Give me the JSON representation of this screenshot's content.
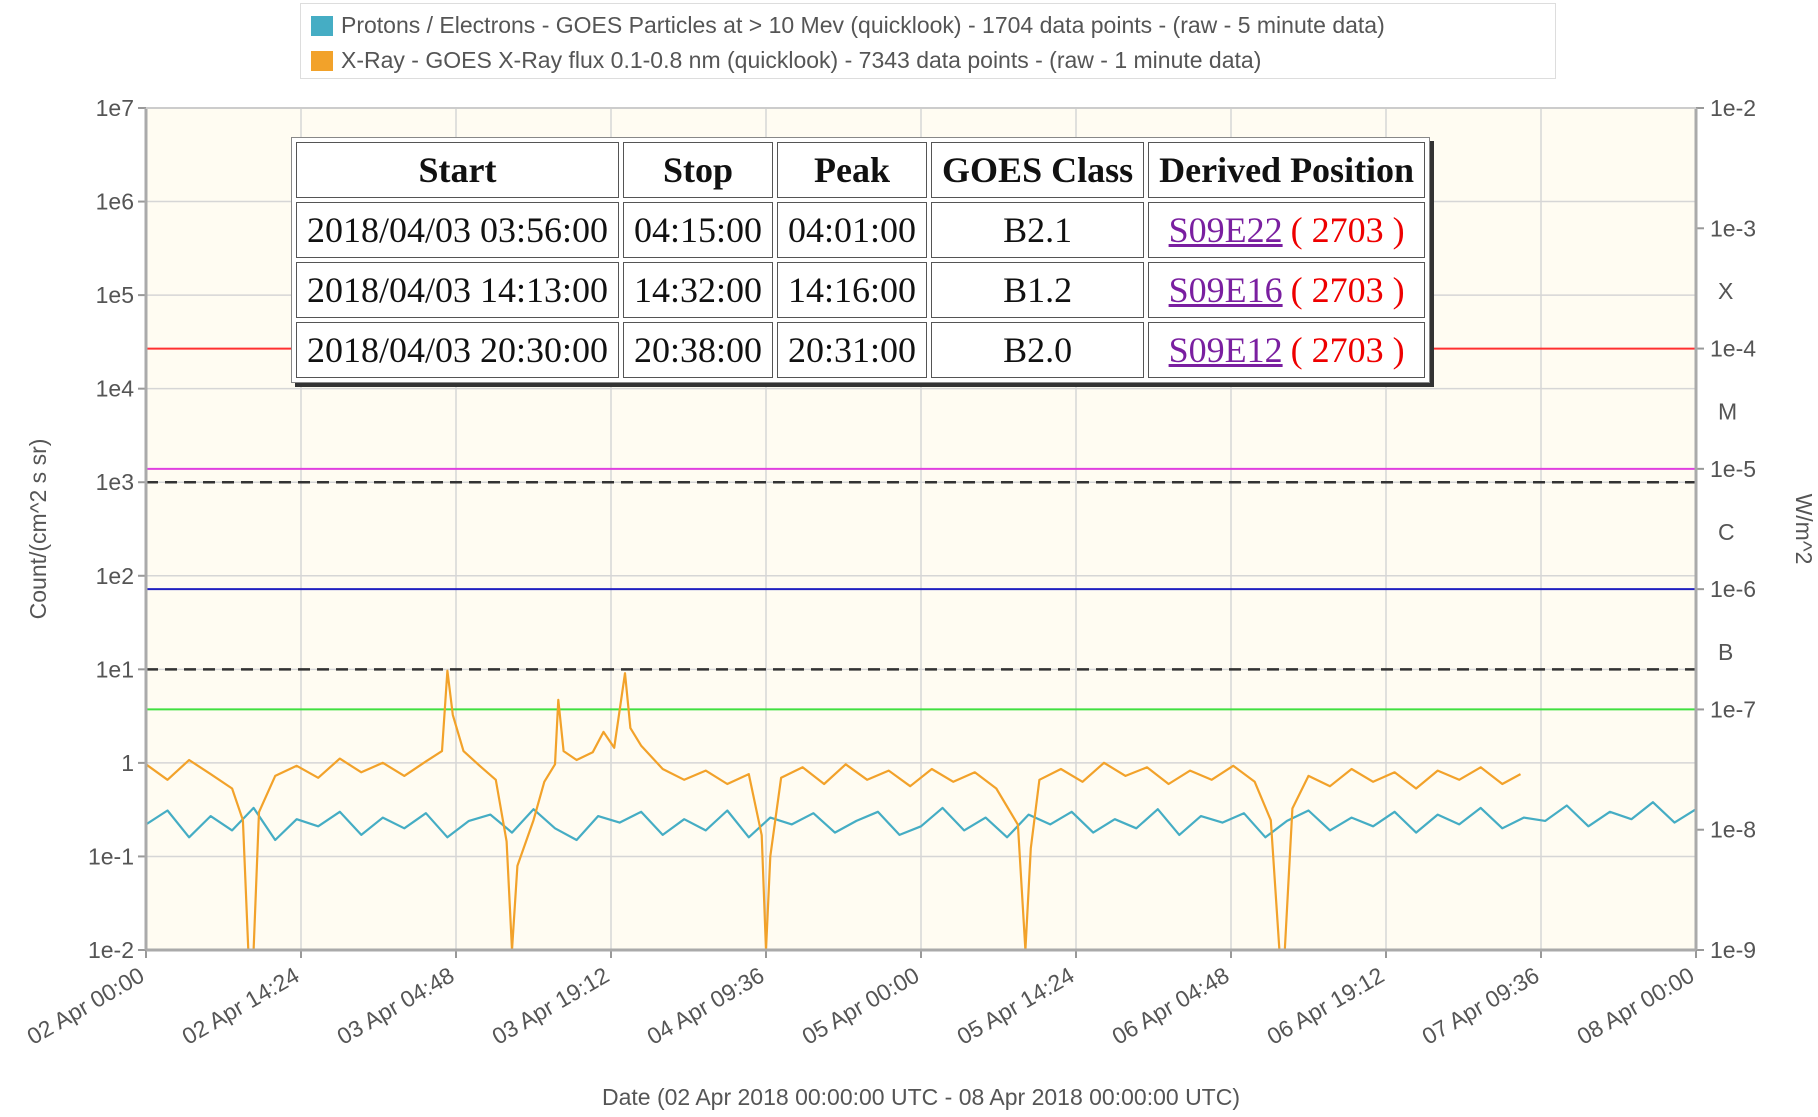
{
  "chart_data": {
    "type": "line",
    "xlabel": "Date (02 Apr 2018 00:00:00 UTC - 08 Apr 2018 00:00:00 UTC)",
    "ylabel": "Count/(cm^2 s sr)",
    "y2label": "W/m^2",
    "ylog": true,
    "y2log": true,
    "grid": true,
    "xlim": [
      "2018-04-02T00:00",
      "2018-04-08T00:00"
    ],
    "xticks": [
      {
        "value": "2018-04-02T00:00",
        "label": "02 Apr 00:00"
      },
      {
        "value": "2018-04-02T14:24",
        "label": "02 Apr 14:24"
      },
      {
        "value": "2018-04-03T04:48",
        "label": "03 Apr 04:48"
      },
      {
        "value": "2018-04-03T19:12",
        "label": "03 Apr 19:12"
      },
      {
        "value": "2018-04-04T09:36",
        "label": "04 Apr 09:36"
      },
      {
        "value": "2018-04-05T00:00",
        "label": "05 Apr 00:00"
      },
      {
        "value": "2018-04-05T14:24",
        "label": "05 Apr 14:24"
      },
      {
        "value": "2018-04-06T04:48",
        "label": "06 Apr 04:48"
      },
      {
        "value": "2018-04-06T19:12",
        "label": "06 Apr 19:12"
      },
      {
        "value": "2018-04-07T09:36",
        "label": "07 Apr 09:36"
      },
      {
        "value": "2018-04-08T00:00",
        "label": "08 Apr 00:00"
      }
    ],
    "ylim": [
      0.01,
      10000000
    ],
    "yticks": [
      {
        "value": 0.01,
        "label": "1e-2"
      },
      {
        "value": 0.1,
        "label": "1e-1"
      },
      1,
      {
        "value": 10,
        "label": "1e1"
      },
      {
        "value": 100,
        "label": "1e2"
      },
      {
        "value": 1000,
        "label": "1e3"
      },
      {
        "value": 10000,
        "label": "1e4"
      },
      {
        "value": 100000,
        "label": "1e5"
      },
      {
        "value": 1000000,
        "label": "1e6"
      },
      {
        "value": 10000000,
        "label": "1e7"
      }
    ],
    "y2lim": [
      1e-09,
      0.01
    ],
    "y2ticks": [
      {
        "value": 1e-09,
        "label": "1e-9"
      },
      {
        "value": 1e-08,
        "label": "1e-8"
      },
      {
        "value": 1e-07,
        "label": "1e-7"
      },
      {
        "value": 1e-06,
        "label": "1e-6"
      },
      {
        "value": 1e-05,
        "label": "1e-5"
      },
      {
        "value": 0.0001,
        "label": "1e-4"
      },
      {
        "value": 0.001,
        "label": "1e-3"
      },
      {
        "value": 0.01,
        "label": "1e-2"
      }
    ],
    "y2_class_labels": [
      {
        "value": 3e-07,
        "label": "B"
      },
      {
        "value": 3e-06,
        "label": "C"
      },
      {
        "value": 3e-05,
        "label": "M"
      },
      {
        "value": 0.0003,
        "label": "X"
      }
    ],
    "reference_lines": [
      {
        "axis": "y2",
        "value": 0.0001,
        "color": "#ff3030"
      },
      {
        "axis": "y2",
        "value": 1e-05,
        "color": "#e040e0"
      },
      {
        "axis": "y2",
        "value": 1e-06,
        "color": "#2020c0"
      },
      {
        "axis": "y2",
        "value": 1e-07,
        "color": "#40e040"
      },
      {
        "axis": "y",
        "value": 1000,
        "color": "#333333",
        "dashed": true
      },
      {
        "axis": "y",
        "value": 10,
        "color": "#333333",
        "dashed": true
      }
    ],
    "series": [
      {
        "name": "Protons / Electrons - GOES Particles at > 10 Mev (quicklook) - 1704 data points -  (raw - 5 minute data)",
        "color": "#45adc4",
        "axis": "y",
        "x": [
          "2018-04-02T00:00",
          "2018-04-02T02:00",
          "2018-04-02T04:00",
          "2018-04-02T06:00",
          "2018-04-02T08:00",
          "2018-04-02T10:00",
          "2018-04-02T12:00",
          "2018-04-02T14:00",
          "2018-04-02T16:00",
          "2018-04-02T18:00",
          "2018-04-02T20:00",
          "2018-04-02T22:00",
          "2018-04-03T00:00",
          "2018-04-03T02:00",
          "2018-04-03T04:00",
          "2018-04-03T06:00",
          "2018-04-03T08:00",
          "2018-04-03T10:00",
          "2018-04-03T12:00",
          "2018-04-03T14:00",
          "2018-04-03T16:00",
          "2018-04-03T18:00",
          "2018-04-03T20:00",
          "2018-04-03T22:00",
          "2018-04-04T00:00",
          "2018-04-04T02:00",
          "2018-04-04T04:00",
          "2018-04-04T06:00",
          "2018-04-04T08:00",
          "2018-04-04T10:00",
          "2018-04-04T12:00",
          "2018-04-04T14:00",
          "2018-04-04T16:00",
          "2018-04-04T18:00",
          "2018-04-04T20:00",
          "2018-04-04T22:00",
          "2018-04-05T00:00",
          "2018-04-05T02:00",
          "2018-04-05T04:00",
          "2018-04-05T06:00",
          "2018-04-05T08:00",
          "2018-04-05T10:00",
          "2018-04-05T12:00",
          "2018-04-05T14:00",
          "2018-04-05T16:00",
          "2018-04-05T18:00",
          "2018-04-05T20:00",
          "2018-04-05T22:00",
          "2018-04-06T00:00",
          "2018-04-06T02:00",
          "2018-04-06T04:00",
          "2018-04-06T06:00",
          "2018-04-06T08:00",
          "2018-04-06T10:00",
          "2018-04-06T12:00",
          "2018-04-06T14:00",
          "2018-04-06T16:00",
          "2018-04-06T18:00",
          "2018-04-06T20:00",
          "2018-04-06T22:00",
          "2018-04-07T00:00",
          "2018-04-07T02:00",
          "2018-04-07T04:00",
          "2018-04-07T06:00",
          "2018-04-07T08:00",
          "2018-04-07T10:00",
          "2018-04-07T12:00",
          "2018-04-07T14:00",
          "2018-04-07T16:00",
          "2018-04-07T18:00",
          "2018-04-07T20:00",
          "2018-04-07T22:00",
          "2018-04-08T00:00"
        ],
        "values": [
          0.22,
          0.31,
          0.16,
          0.27,
          0.19,
          0.33,
          0.15,
          0.25,
          0.21,
          0.3,
          0.17,
          0.26,
          0.2,
          0.29,
          0.16,
          0.24,
          0.28,
          0.18,
          0.32,
          0.2,
          0.15,
          0.27,
          0.23,
          0.3,
          0.17,
          0.25,
          0.19,
          0.31,
          0.16,
          0.26,
          0.22,
          0.29,
          0.18,
          0.24,
          0.3,
          0.17,
          0.21,
          0.33,
          0.19,
          0.26,
          0.16,
          0.28,
          0.22,
          0.3,
          0.18,
          0.25,
          0.2,
          0.32,
          0.17,
          0.27,
          0.23,
          0.29,
          0.16,
          0.24,
          0.31,
          0.19,
          0.26,
          0.21,
          0.3,
          0.18,
          0.28,
          0.22,
          0.33,
          0.2,
          0.26,
          0.24,
          0.35,
          0.21,
          0.3,
          0.25,
          0.38,
          0.23,
          0.32
        ]
      },
      {
        "name": "X-Ray - GOES X-Ray flux 0.1-0.8 nm (quicklook) - 7343 data points -  (raw - 1 minute data)",
        "color": "#f2a22a",
        "axis": "y2",
        "x": [
          "2018-04-02T00:00",
          "2018-04-02T02:00",
          "2018-04-02T04:00",
          "2018-04-02T06:00",
          "2018-04-02T08:00",
          "2018-04-02T09:00",
          "2018-04-02T09:30",
          "2018-04-02T10:00",
          "2018-04-02T10:30",
          "2018-04-02T12:00",
          "2018-04-02T14:00",
          "2018-04-02T16:00",
          "2018-04-02T18:00",
          "2018-04-02T20:00",
          "2018-04-02T22:00",
          "2018-04-03T00:00",
          "2018-04-03T02:00",
          "2018-04-03T03:30",
          "2018-04-03T04:00",
          "2018-04-03T04:30",
          "2018-04-03T05:30",
          "2018-04-03T07:00",
          "2018-04-03T08:30",
          "2018-04-03T09:30",
          "2018-04-03T10:00",
          "2018-04-03T10:30",
          "2018-04-03T12:00",
          "2018-04-03T13:00",
          "2018-04-03T14:00",
          "2018-04-03T14:18",
          "2018-04-03T14:48",
          "2018-04-03T16:00",
          "2018-04-03T17:30",
          "2018-04-03T18:30",
          "2018-04-03T19:30",
          "2018-04-03T20:30",
          "2018-04-03T21:00",
          "2018-04-03T22:00",
          "2018-04-04T00:00",
          "2018-04-04T02:00",
          "2018-04-04T04:00",
          "2018-04-04T06:00",
          "2018-04-04T08:00",
          "2018-04-04T09:12",
          "2018-04-04T09:36",
          "2018-04-04T10:00",
          "2018-04-04T11:00",
          "2018-04-04T13:00",
          "2018-04-04T15:00",
          "2018-04-04T17:00",
          "2018-04-04T19:00",
          "2018-04-04T21:00",
          "2018-04-04T23:00",
          "2018-04-05T01:00",
          "2018-04-05T03:00",
          "2018-04-05T05:00",
          "2018-04-05T07:00",
          "2018-04-05T09:00",
          "2018-04-05T09:42",
          "2018-04-05T10:12",
          "2018-04-05T11:00",
          "2018-04-05T13:00",
          "2018-04-05T15:00",
          "2018-04-05T17:00",
          "2018-04-05T19:00",
          "2018-04-05T21:00",
          "2018-04-05T23:00",
          "2018-04-06T01:00",
          "2018-04-06T03:00",
          "2018-04-06T05:00",
          "2018-04-06T07:00",
          "2018-04-06T08:30",
          "2018-04-06T09:18",
          "2018-04-06T09:48",
          "2018-04-06T10:30",
          "2018-04-06T12:00",
          "2018-04-06T14:00",
          "2018-04-06T16:00",
          "2018-04-06T18:00",
          "2018-04-06T20:00",
          "2018-04-06T22:00",
          "2018-04-07T00:00",
          "2018-04-07T02:00",
          "2018-04-07T04:00",
          "2018-04-07T06:00",
          "2018-04-07T07:42"
        ],
        "values": [
          3.5e-08,
          2.6e-08,
          3.8e-08,
          2.9e-08,
          2.2e-08,
          1.2e-08,
          1e-09,
          1e-09,
          1.4e-08,
          2.8e-08,
          3.4e-08,
          2.7e-08,
          3.9e-08,
          3e-08,
          3.6e-08,
          2.8e-08,
          3.7e-08,
          4.5e-08,
          2.1e-07,
          9e-08,
          4.5e-08,
          3.4e-08,
          2.6e-08,
          8e-09,
          1e-09,
          5e-09,
          1.2e-08,
          2.5e-08,
          3.5e-08,
          1.2e-07,
          4.5e-08,
          3.8e-08,
          4.4e-08,
          6.5e-08,
          4.8e-08,
          2e-07,
          7e-08,
          5e-08,
          3.2e-08,
          2.6e-08,
          3.1e-08,
          2.4e-08,
          2.9e-08,
          9e-09,
          1e-09,
          6e-09,
          2.7e-08,
          3.3e-08,
          2.4e-08,
          3.5e-08,
          2.6e-08,
          3.1e-08,
          2.3e-08,
          3.2e-08,
          2.5e-08,
          3e-08,
          2.2e-08,
          1.1e-08,
          1e-09,
          7e-09,
          2.6e-08,
          3.2e-08,
          2.5e-08,
          3.6e-08,
          2.8e-08,
          3.3e-08,
          2.4e-08,
          3.1e-08,
          2.6e-08,
          3.4e-08,
          2.5e-08,
          1.2e-08,
          1e-09,
          1e-09,
          1.5e-08,
          2.8e-08,
          2.3e-08,
          3.2e-08,
          2.5e-08,
          3e-08,
          2.2e-08,
          3.1e-08,
          2.6e-08,
          3.3e-08,
          2.4e-08,
          2.9e-08
        ]
      }
    ]
  },
  "flare_table": {
    "columns": [
      "Start",
      "Stop",
      "Peak",
      "GOES Class",
      "Derived Position"
    ],
    "rows": [
      {
        "start": "2018/04/03 03:56:00",
        "stop": "04:15:00",
        "peak": "04:01:00",
        "goes_class": "B2.1",
        "position": "S09E22",
        "region": "( 2703 )"
      },
      {
        "start": "2018/04/03 14:13:00",
        "stop": "14:32:00",
        "peak": "14:16:00",
        "goes_class": "B1.2",
        "position": "S09E16",
        "region": "( 2703 )"
      },
      {
        "start": "2018/04/03 20:30:00",
        "stop": "20:38:00",
        "peak": "20:31:00",
        "goes_class": "B2.0",
        "position": "S09E12",
        "region": "( 2703 )"
      }
    ]
  }
}
